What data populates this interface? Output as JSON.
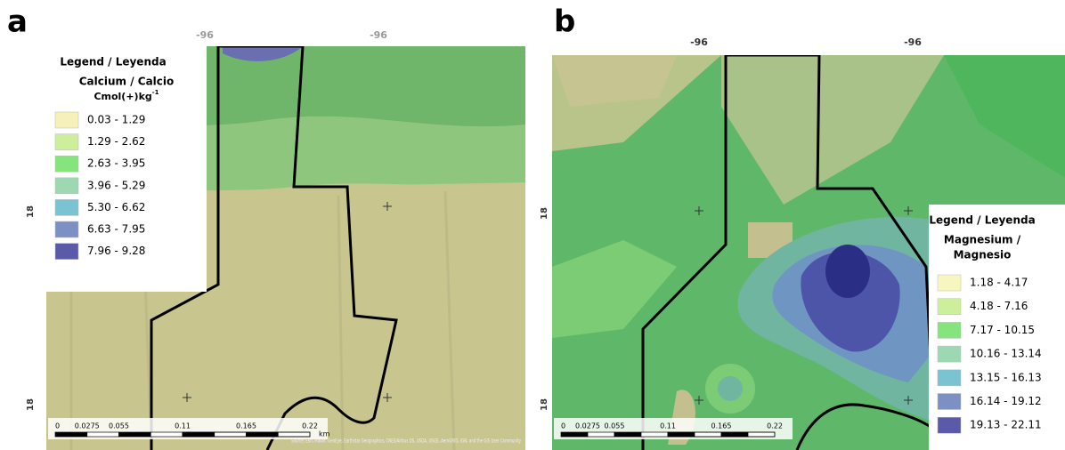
{
  "panels": [
    {
      "label": "a",
      "legend": {
        "title": "Legend / Leyenda",
        "variable_lines": [
          "Calcium / Calcio"
        ],
        "unit": "Cmol(+)kg",
        "unit_sup": "-1",
        "classes": [
          {
            "label": "0.03 - 1.29",
            "color": "#f6f1b8"
          },
          {
            "label": "1.29 - 2.62",
            "color": "#cdef9c"
          },
          {
            "label": "2.63 - 3.95",
            "color": "#86e47c"
          },
          {
            "label": "3.96 - 5.29",
            "color": "#9ed8b2"
          },
          {
            "label": "5.30 - 6.62",
            "color": "#7cc3d2"
          },
          {
            "label": "6.63 - 7.95",
            "color": "#7c90c6"
          },
          {
            "label": "7.96 - 9.28",
            "color": "#5b5aa9"
          }
        ]
      },
      "top_coords": [
        "-96",
        "-96"
      ],
      "left_coords": [
        "18",
        "18"
      ],
      "scale": [
        "0",
        "0.0275",
        "0.055",
        "0.11",
        "0.165",
        "0.22"
      ],
      "scale_unit": "km"
    },
    {
      "label": "b",
      "legend": {
        "title": "Legend / Leyenda",
        "variable_lines": [
          "Magnesium /",
          "Magnesio"
        ],
        "classes": [
          {
            "label": "1.18 - 4.17",
            "color": "#f8f6c0"
          },
          {
            "label": "4.18 - 7.16",
            "color": "#cdef9c"
          },
          {
            "label": "7.17 - 10.15",
            "color": "#86e47c"
          },
          {
            "label": "10.16 - 13.14",
            "color": "#9ed8b2"
          },
          {
            "label": "13.15 - 16.13",
            "color": "#7cc3d2"
          },
          {
            "label": "16.14 - 19.12",
            "color": "#7c90c6"
          },
          {
            "label": "19.13 - 22.11",
            "color": "#5b5aa9"
          }
        ]
      },
      "top_coords": [
        "-96",
        "-96"
      ],
      "left_coords": [
        "18",
        "18"
      ],
      "scale": [
        "0",
        "0.0275",
        "0.055",
        "0.11",
        "0.165",
        "0.22"
      ]
    }
  ],
  "attribution": "Source: Esri, Maxar, GeoEye, Earthstar Geographics, CNES/Airbus DS, USDA, USGS, AeroGRID, IGN, and the GIS User Community"
}
